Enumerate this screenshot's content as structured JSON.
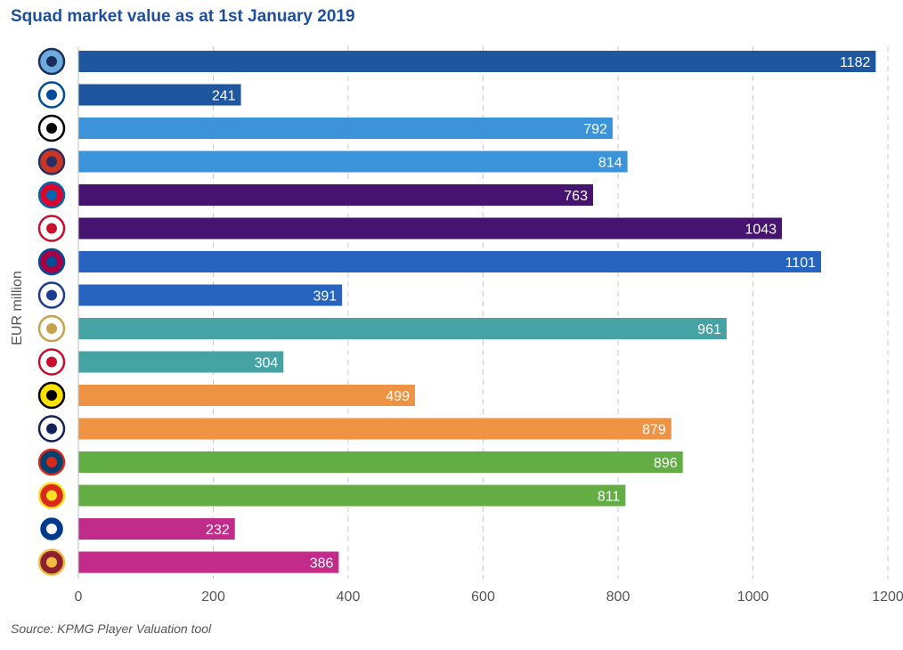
{
  "chart_data": {
    "type": "bar",
    "orientation": "horizontal",
    "title": "Squad market value as at 1st January 2019",
    "ylabel": "EUR million",
    "xlabel": "",
    "xlim": [
      0,
      1200
    ],
    "xticks": [
      0,
      200,
      400,
      600,
      800,
      1000,
      1200
    ],
    "xtick_labels": [
      "0",
      "200",
      "400",
      "600",
      "800",
      "1000",
      "1200"
    ],
    "grid": "vertical-dashed",
    "legend": "none",
    "categories": [
      "manchester-city-crest",
      "schalke-crest",
      "juventus-crest",
      "atletico-madrid-crest",
      "bayern-munich-crest",
      "liverpool-crest",
      "barcelona-crest",
      "lyon-crest",
      "real-madrid-crest",
      "ajax-crest",
      "dortmund-crest",
      "tottenham-crest",
      "psg-crest",
      "manchester-united-crest",
      "porto-crest",
      "roma-crest"
    ],
    "values": [
      1182,
      241,
      792,
      814,
      763,
      1043,
      1101,
      391,
      961,
      304,
      499,
      879,
      896,
      811,
      232,
      386
    ],
    "value_labels": [
      "1182",
      "241",
      "792",
      "814",
      "763",
      "1043",
      "1101",
      "391",
      "961",
      "304",
      "499",
      "879",
      "896",
      "811",
      "232",
      "386"
    ],
    "colors": [
      "#1f56a0",
      "#1f56a0",
      "#3b94d9",
      "#3b94d9",
      "#461470",
      "#461470",
      "#2664c0",
      "#2664c0",
      "#45a3a3",
      "#45a3a3",
      "#ee9344",
      "#ee9344",
      "#63ad45",
      "#63ad45",
      "#c12c8a",
      "#c12c8a"
    ]
  },
  "source": "Source: KPMG Player Valuation tool",
  "crests": [
    {
      "icon": "manchester-city-crest",
      "bg": "#6cabdd",
      "fg": "#1c2c5b"
    },
    {
      "icon": "schalke-crest",
      "bg": "#ffffff",
      "fg": "#004d9d"
    },
    {
      "icon": "juventus-crest",
      "bg": "#ffffff",
      "fg": "#000000"
    },
    {
      "icon": "atletico-madrid-crest",
      "bg": "#cb3524",
      "fg": "#272e61"
    },
    {
      "icon": "bayern-munich-crest",
      "bg": "#dc052d",
      "fg": "#0066b2"
    },
    {
      "icon": "liverpool-crest",
      "bg": "#ffffff",
      "fg": "#c8102e"
    },
    {
      "icon": "barcelona-crest",
      "bg": "#a50044",
      "fg": "#004d98"
    },
    {
      "icon": "lyon-crest",
      "bg": "#ffffff",
      "fg": "#1d3b8f"
    },
    {
      "icon": "real-madrid-crest",
      "bg": "#ffffff",
      "fg": "#c7a24e"
    },
    {
      "icon": "ajax-crest",
      "bg": "#ffffff",
      "fg": "#c8102e"
    },
    {
      "icon": "dortmund-crest",
      "bg": "#fde100",
      "fg": "#000000"
    },
    {
      "icon": "tottenham-crest",
      "bg": "#ffffff",
      "fg": "#132257"
    },
    {
      "icon": "psg-crest",
      "bg": "#004170",
      "fg": "#da291c"
    },
    {
      "icon": "manchester-united-crest",
      "bg": "#da291c",
      "fg": "#fbe122"
    },
    {
      "icon": "porto-crest",
      "bg": "#003a8c",
      "fg": "#ffffff"
    },
    {
      "icon": "roma-crest",
      "bg": "#8e1f2f",
      "fg": "#f0bc42"
    }
  ]
}
